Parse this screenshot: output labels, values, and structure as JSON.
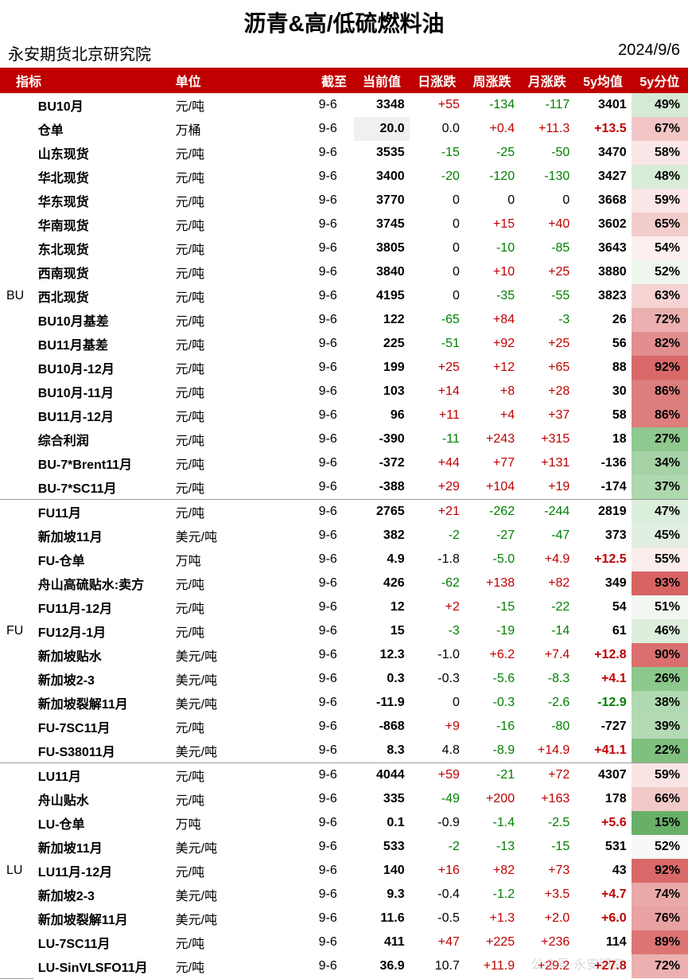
{
  "title": "沥青&高/低硫燃料油",
  "org": "永安期货北京研究院",
  "dateLabel": "2024/9/6",
  "headers": [
    "指标",
    "单位",
    "截至",
    "当前值",
    "日涨跌",
    "周涨跌",
    "月涨跌",
    "5y均值",
    "5y分位"
  ],
  "colors": {
    "pos": "#c00000",
    "neg": "#008000",
    "neu": "#000000"
  },
  "groups": [
    {
      "name": "BU",
      "rows": [
        {
          "ind": "BU10月",
          "unit": "元/吨",
          "date": "9-6",
          "cur": "3348",
          "d": "+55",
          "dC": "pos",
          "w": "-134",
          "wC": "neg",
          "m": "-117",
          "mC": "neg",
          "avg": "3401",
          "avgC": "neu",
          "pct": "49%",
          "bg": "#d5ead5"
        },
        {
          "ind": "仓单",
          "unit": "万桶",
          "date": "9-6",
          "cur": "20.0",
          "d": "0.0",
          "dC": "neu",
          "w": "+0.4",
          "wC": "pos",
          "m": "+11.3",
          "mC": "pos",
          "avg": "+13.5",
          "avgC": "pos",
          "pct": "67%",
          "bg": "#f2c6c6",
          "curBg": "#f0f0f0"
        },
        {
          "ind": "山东现货",
          "unit": "元/吨",
          "date": "9-6",
          "cur": "3535",
          "d": "-15",
          "dC": "neg",
          "w": "-25",
          "wC": "neg",
          "m": "-50",
          "mC": "neg",
          "avg": "3470",
          "avgC": "neu",
          "pct": "58%",
          "bg": "#fae6e6"
        },
        {
          "ind": "华北现货",
          "unit": "元/吨",
          "date": "9-6",
          "cur": "3400",
          "d": "-20",
          "dC": "neg",
          "w": "-120",
          "wC": "neg",
          "m": "-130",
          "mC": "neg",
          "avg": "3427",
          "avgC": "neu",
          "pct": "48%",
          "bg": "#d8ecd8"
        },
        {
          "ind": "华东现货",
          "unit": "元/吨",
          "date": "9-6",
          "cur": "3770",
          "d": "0",
          "dC": "neu",
          "w": "0",
          "wC": "neu",
          "m": "0",
          "mC": "neu",
          "avg": "3668",
          "avgC": "neu",
          "pct": "59%",
          "bg": "#fae6e6"
        },
        {
          "ind": "华南现货",
          "unit": "元/吨",
          "date": "9-6",
          "cur": "3745",
          "d": "0",
          "dC": "neu",
          "w": "+15",
          "wC": "pos",
          "m": "+40",
          "mC": "pos",
          "avg": "3602",
          "avgC": "neu",
          "pct": "65%",
          "bg": "#f3cccc"
        },
        {
          "ind": "东北现货",
          "unit": "元/吨",
          "date": "9-6",
          "cur": "3805",
          "d": "0",
          "dC": "neu",
          "w": "-10",
          "wC": "neg",
          "m": "-85",
          "mC": "neg",
          "avg": "3643",
          "avgC": "neu",
          "pct": "54%",
          "bg": "#fcefef"
        },
        {
          "ind": "西南现货",
          "unit": "元/吨",
          "date": "9-6",
          "cur": "3840",
          "d": "0",
          "dC": "neu",
          "w": "+10",
          "wC": "pos",
          "m": "+25",
          "mC": "pos",
          "avg": "3880",
          "avgC": "neu",
          "pct": "52%",
          "bg": "#edf5ed"
        },
        {
          "ind": "西北现货",
          "unit": "元/吨",
          "date": "9-6",
          "cur": "4195",
          "d": "0",
          "dC": "neu",
          "w": "-35",
          "wC": "neg",
          "m": "-55",
          "mC": "neg",
          "avg": "3823",
          "avgC": "neu",
          "pct": "63%",
          "bg": "#f5d3d3"
        },
        {
          "ind": "BU10月基差",
          "unit": "元/吨",
          "date": "9-6",
          "cur": "122",
          "d": "-65",
          "dC": "neg",
          "w": "+84",
          "wC": "pos",
          "m": "-3",
          "mC": "neg",
          "avg": "26",
          "avgC": "neu",
          "pct": "72%",
          "bg": "#ecb0b0"
        },
        {
          "ind": "BU11月基差",
          "unit": "元/吨",
          "date": "9-6",
          "cur": "225",
          "d": "-51",
          "dC": "neg",
          "w": "+92",
          "wC": "pos",
          "m": "+25",
          "mC": "pos",
          "avg": "56",
          "avgC": "neu",
          "pct": "82%",
          "bg": "#e28e8e"
        },
        {
          "ind": "BU10月-12月",
          "unit": "元/吨",
          "date": "9-6",
          "cur": "199",
          "d": "+25",
          "dC": "pos",
          "w": "+12",
          "wC": "pos",
          "m": "+65",
          "mC": "pos",
          "avg": "88",
          "avgC": "neu",
          "pct": "92%",
          "bg": "#d96868"
        },
        {
          "ind": "BU10月-11月",
          "unit": "元/吨",
          "date": "9-6",
          "cur": "103",
          "d": "+14",
          "dC": "pos",
          "w": "+8",
          "wC": "pos",
          "m": "+28",
          "mC": "pos",
          "avg": "30",
          "avgC": "neu",
          "pct": "86%",
          "bg": "#de7d7d"
        },
        {
          "ind": "BU11月-12月",
          "unit": "元/吨",
          "date": "9-6",
          "cur": "96",
          "d": "+11",
          "dC": "pos",
          "w": "+4",
          "wC": "pos",
          "m": "+37",
          "mC": "pos",
          "avg": "58",
          "avgC": "neu",
          "pct": "86%",
          "bg": "#de7d7d"
        },
        {
          "ind": "综合利润",
          "unit": "元/吨",
          "date": "9-6",
          "cur": "-390",
          "d": "-11",
          "dC": "neg",
          "w": "+243",
          "wC": "pos",
          "m": "+315",
          "mC": "pos",
          "avg": "18",
          "avgC": "neu",
          "pct": "27%",
          "bg": "#8fc98f"
        },
        {
          "ind": "BU-7*Brent11月",
          "unit": "元/吨",
          "date": "9-6",
          "cur": "-372",
          "d": "+44",
          "dC": "pos",
          "w": "+77",
          "wC": "pos",
          "m": "+131",
          "mC": "pos",
          "avg": "-136",
          "avgC": "neu",
          "pct": "34%",
          "bg": "#a5d3a5"
        },
        {
          "ind": "BU-7*SC11月",
          "unit": "元/吨",
          "date": "9-6",
          "cur": "-388",
          "d": "+29",
          "dC": "pos",
          "w": "+104",
          "wC": "pos",
          "m": "+19",
          "mC": "pos",
          "avg": "-174",
          "avgC": "neu",
          "pct": "37%",
          "bg": "#aed8ae"
        }
      ]
    },
    {
      "name": "FU",
      "rows": [
        {
          "ind": "FU11月",
          "unit": "元/吨",
          "date": "9-6",
          "cur": "2765",
          "d": "+21",
          "dC": "pos",
          "w": "-262",
          "wC": "neg",
          "m": "-244",
          "mC": "neg",
          "avg": "2819",
          "avgC": "neu",
          "pct": "47%",
          "bg": "#dbeddb"
        },
        {
          "ind": "新加坡11月",
          "unit": "美元/吨",
          "date": "9-6",
          "cur": "382",
          "d": "-2",
          "dC": "neg",
          "w": "-27",
          "wC": "neg",
          "m": "-47",
          "mC": "neg",
          "avg": "373",
          "avgC": "neu",
          "pct": "45%",
          "bg": "#e0efe0"
        },
        {
          "ind": "FU-仓单",
          "unit": "万吨",
          "date": "9-6",
          "cur": "4.9",
          "d": "-1.8",
          "dC": "neu",
          "w": "-5.0",
          "wC": "neg",
          "m": "+4.9",
          "mC": "pos",
          "avg": "+12.5",
          "avgC": "pos",
          "pct": "55%",
          "bg": "#fbecec"
        },
        {
          "ind": "舟山高硫贴水:卖方",
          "unit": "元/吨",
          "date": "9-6",
          "cur": "426",
          "d": "-62",
          "dC": "neg",
          "w": "+138",
          "wC": "pos",
          "m": "+82",
          "mC": "pos",
          "avg": "349",
          "avgC": "neu",
          "pct": "93%",
          "bg": "#d86363"
        },
        {
          "ind": "FU11月-12月",
          "unit": "元/吨",
          "date": "9-6",
          "cur": "12",
          "d": "+2",
          "dC": "pos",
          "w": "-15",
          "wC": "neg",
          "m": "-22",
          "mC": "neg",
          "avg": "54",
          "avgC": "neu",
          "pct": "51%",
          "bg": "#f2f7f2"
        },
        {
          "ind": "FU12月-1月",
          "unit": "元/吨",
          "date": "9-6",
          "cur": "15",
          "d": "-3",
          "dC": "neg",
          "w": "-19",
          "wC": "neg",
          "m": "-14",
          "mC": "neg",
          "avg": "61",
          "avgC": "neu",
          "pct": "46%",
          "bg": "#ddeedd"
        },
        {
          "ind": "新加坡贴水",
          "unit": "美元/吨",
          "date": "9-6",
          "cur": "12.3",
          "d": "-1.0",
          "dC": "neu",
          "w": "+6.2",
          "wC": "pos",
          "m": "+7.4",
          "mC": "pos",
          "avg": "+12.8",
          "avgC": "pos",
          "pct": "90%",
          "bg": "#db6f6f"
        },
        {
          "ind": "新加坡2-3",
          "unit": "美元/吨",
          "date": "9-6",
          "cur": "0.3",
          "d": "-0.3",
          "dC": "neu",
          "w": "-5.6",
          "wC": "neg",
          "m": "-8.3",
          "mC": "neg",
          "avg": "+4.1",
          "avgC": "pos",
          "pct": "26%",
          "bg": "#8cc78c"
        },
        {
          "ind": "新加坡裂解11月",
          "unit": "美元/吨",
          "date": "9-6",
          "cur": "-11.9",
          "d": "0",
          "dC": "neu",
          "w": "-0.3",
          "wC": "neg",
          "m": "-2.6",
          "mC": "neg",
          "avg": "-12.9",
          "avgC": "neg",
          "pct": "38%",
          "bg": "#b1d9b1"
        },
        {
          "ind": "FU-7SC11月",
          "unit": "元/吨",
          "date": "9-6",
          "cur": "-868",
          "d": "+9",
          "dC": "pos",
          "w": "-16",
          "wC": "neg",
          "m": "-80",
          "mC": "neg",
          "avg": "-727",
          "avgC": "neu",
          "pct": "39%",
          "bg": "#b4dab4"
        },
        {
          "ind": "FU-S38011月",
          "unit": "美元/吨",
          "date": "9-6",
          "cur": "8.3",
          "d": "4.8",
          "dC": "neu",
          "w": "-8.9",
          "wC": "neg",
          "m": "+14.9",
          "mC": "pos",
          "avg": "+41.1",
          "avgC": "pos",
          "pct": "22%",
          "bg": "#7fc07f"
        }
      ]
    },
    {
      "name": "LU",
      "rows": [
        {
          "ind": "LU11月",
          "unit": "元/吨",
          "date": "9-6",
          "cur": "4044",
          "d": "+59",
          "dC": "pos",
          "w": "-21",
          "wC": "neg",
          "m": "+72",
          "mC": "pos",
          "avg": "4307",
          "avgC": "neu",
          "pct": "59%",
          "bg": "#f9e3e3"
        },
        {
          "ind": "舟山贴水",
          "unit": "元/吨",
          "date": "9-6",
          "cur": "335",
          "d": "-49",
          "dC": "neg",
          "w": "+200",
          "wC": "pos",
          "m": "+163",
          "mC": "pos",
          "avg": "178",
          "avgC": "neu",
          "pct": "66%",
          "bg": "#f2c9c9"
        },
        {
          "ind": "LU-仓单",
          "unit": "万吨",
          "date": "9-6",
          "cur": "0.1",
          "d": "-0.9",
          "dC": "neu",
          "w": "-1.4",
          "wC": "neg",
          "m": "-2.5",
          "mC": "neg",
          "avg": "+5.6",
          "avgC": "pos",
          "pct": "15%",
          "bg": "#68b068"
        },
        {
          "ind": "新加坡11月",
          "unit": "美元/吨",
          "date": "9-6",
          "cur": "533",
          "d": "-2",
          "dC": "neg",
          "w": "-13",
          "wC": "neg",
          "m": "-15",
          "mC": "neg",
          "avg": "531",
          "avgC": "neu",
          "pct": "52%",
          "bg": "#f6f9f6"
        },
        {
          "ind": "LU11月-12月",
          "unit": "元/吨",
          "date": "9-6",
          "cur": "140",
          "d": "+16",
          "dC": "pos",
          "w": "+82",
          "wC": "pos",
          "m": "+73",
          "mC": "pos",
          "avg": "43",
          "avgC": "neu",
          "pct": "92%",
          "bg": "#d96868"
        },
        {
          "ind": "新加坡2-3",
          "unit": "美元/吨",
          "date": "9-6",
          "cur": "9.3",
          "d": "-0.4",
          "dC": "neu",
          "w": "-1.2",
          "wC": "neg",
          "m": "+3.5",
          "mC": "pos",
          "avg": "+4.7",
          "avgC": "pos",
          "pct": "74%",
          "bg": "#eaa9a9"
        },
        {
          "ind": "新加坡裂解11月",
          "unit": "美元/吨",
          "date": "9-6",
          "cur": "11.6",
          "d": "-0.5",
          "dC": "neu",
          "w": "+1.3",
          "wC": "pos",
          "m": "+2.0",
          "mC": "pos",
          "avg": "+6.0",
          "avgC": "pos",
          "pct": "76%",
          "bg": "#e8a2a2"
        },
        {
          "ind": "LU-7SC11月",
          "unit": "元/吨",
          "date": "9-6",
          "cur": "411",
          "d": "+47",
          "dC": "pos",
          "w": "+225",
          "wC": "pos",
          "m": "+236",
          "mC": "pos",
          "avg": "114",
          "avgC": "neu",
          "pct": "89%",
          "bg": "#dd7474"
        },
        {
          "ind": "LU-SinVLSFO11月",
          "unit": "元/吨",
          "date": "9-6",
          "cur": "36.9",
          "d": "10.7",
          "dC": "neu",
          "w": "+11.9",
          "wC": "pos",
          "m": "+29.2",
          "mC": "pos",
          "avg": "+27.8",
          "avgC": "pos",
          "pct": "72%",
          "bg": "#ecb0b0"
        }
      ]
    }
  ]
}
